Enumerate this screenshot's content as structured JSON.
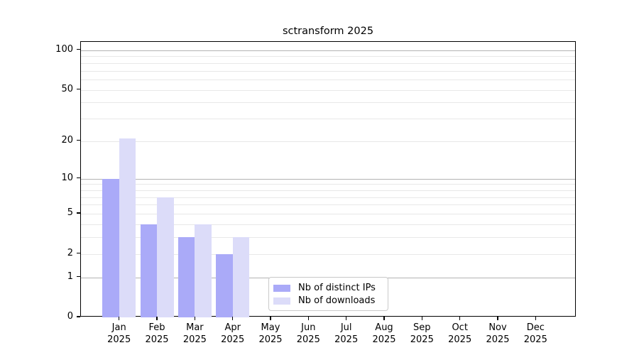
{
  "chart_data": {
    "type": "bar",
    "title": "sctransform 2025",
    "categories": [
      "Jan",
      "Feb",
      "Mar",
      "Apr",
      "May",
      "Jun",
      "Jul",
      "Aug",
      "Sep",
      "Oct",
      "Nov",
      "Dec"
    ],
    "x_year_label": "2025",
    "series": [
      {
        "name": "Nb of distinct IPs",
        "color": "#aaaaf8",
        "values": [
          10,
          4,
          3,
          2,
          0,
          0,
          0,
          0,
          0,
          0,
          0,
          0
        ]
      },
      {
        "name": "Nb of downloads",
        "color": "#dcdcf9",
        "values": [
          21,
          7,
          4,
          3,
          0,
          0,
          0,
          0,
          0,
          0,
          0,
          0
        ]
      }
    ],
    "yscale": "log1p",
    "ylim": [
      0,
      115
    ],
    "ytick_values": [
      0,
      1,
      2,
      5,
      10,
      20,
      50,
      100
    ],
    "major_grid_values": [
      1,
      10,
      100
    ],
    "grid": "horizontal",
    "legend_position": "bottom-center-inside",
    "colors": {
      "major_grid": "#b3b3b3",
      "minor_grid": "#e8e8e8",
      "spine": "#000000",
      "background": "#ffffff"
    }
  }
}
